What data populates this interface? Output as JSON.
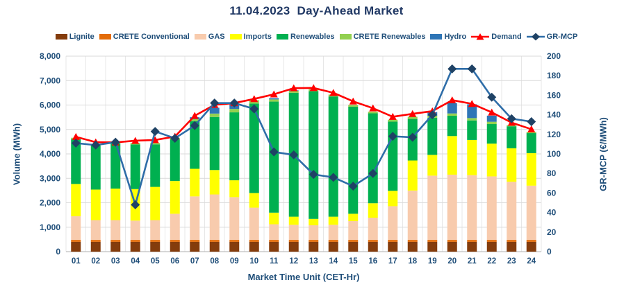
{
  "title": "11.04.2023  Day-Ahead Market",
  "colors": {
    "text_navy": "#1F4E79",
    "title_navy": "#203864",
    "gridline": "#D9D9D9",
    "gridline_vertical": "#E7E7E7",
    "axis_line": "#BFBFBF"
  },
  "legend": {
    "items": [
      {
        "label": "Lignite",
        "type": "swatch",
        "color": "#843C0C"
      },
      {
        "label": "CRETE Conventional",
        "type": "swatch",
        "color": "#E36C09"
      },
      {
        "label": "GAS",
        "type": "swatch",
        "color": "#F8CBAD"
      },
      {
        "label": "Imports",
        "type": "swatch",
        "color": "#FFFF00"
      },
      {
        "label": "Renewables",
        "type": "swatch",
        "color": "#00B050"
      },
      {
        "label": "CRETE Renewables",
        "type": "swatch",
        "color": "#92D050"
      },
      {
        "label": "Hydro",
        "type": "swatch",
        "color": "#2E75B6"
      },
      {
        "label": "Demand",
        "type": "line-triangle",
        "color": "#FF0000"
      },
      {
        "label": "GR-MCP",
        "type": "line-diamond",
        "color": "#2E6DA8",
        "marker_color": "#1F4265"
      }
    ]
  },
  "axes": {
    "left": {
      "title": "Volume (MWh)",
      "ticks": [
        "0",
        "1,000",
        "2,000",
        "3,000",
        "4,000",
        "5,000",
        "6,000",
        "7,000",
        "8,000"
      ]
    },
    "right": {
      "title": "GR-MCP (€/MWh)",
      "ticks": [
        "0",
        "20",
        "40",
        "60",
        "80",
        "100",
        "120",
        "140",
        "160",
        "180",
        "200"
      ]
    },
    "x": {
      "title": "Market Time Unit (CET-Hr)"
    }
  },
  "chart_data": {
    "type": "bar-line-combo",
    "subtype": "stacked-bars-with-two-lines",
    "title": "11.04.2023  Day-Ahead Market",
    "xlabel": "Market Time Unit (CET-Hr)",
    "ylabel_left": "Volume (MWh)",
    "ylabel_right": "GR-MCP (€/MWh)",
    "ylim_left": [
      0,
      8000
    ],
    "ylim_right": [
      0,
      200
    ],
    "grid": true,
    "legend_position": "top",
    "categories": [
      "01",
      "02",
      "03",
      "04",
      "05",
      "06",
      "07",
      "08",
      "09",
      "10",
      "11",
      "12",
      "13",
      "14",
      "15",
      "16",
      "17",
      "18",
      "19",
      "20",
      "21",
      "22",
      "23",
      "24"
    ],
    "stacked_series": [
      {
        "name": "Lignite",
        "color": "#843C0C",
        "values": [
          400,
          400,
          400,
          400,
          400,
          400,
          400,
          400,
          400,
          400,
          400,
          400,
          400,
          400,
          400,
          400,
          400,
          400,
          400,
          400,
          400,
          400,
          400,
          400
        ]
      },
      {
        "name": "CRETE Conventional",
        "color": "#E36C09",
        "values": [
          80,
          80,
          80,
          80,
          80,
          80,
          80,
          80,
          80,
          80,
          80,
          80,
          80,
          80,
          80,
          80,
          80,
          80,
          80,
          80,
          80,
          80,
          80,
          80
        ]
      },
      {
        "name": "GAS",
        "color": "#F8CBAD",
        "values": [
          970,
          810,
          810,
          790,
          810,
          1070,
          1780,
          1860,
          1750,
          1320,
          640,
          620,
          600,
          620,
          770,
          910,
          1380,
          2020,
          2630,
          2670,
          2650,
          2600,
          2380,
          2220
        ]
      },
      {
        "name": "Imports",
        "color": "#FFFF00",
        "values": [
          1320,
          1250,
          1290,
          1290,
          1360,
          1340,
          1130,
          1000,
          690,
          600,
          475,
          330,
          260,
          330,
          300,
          590,
          630,
          1230,
          850,
          1580,
          1440,
          1340,
          1370,
          1330
        ]
      },
      {
        "name": "Renewables",
        "color": "#00B050",
        "values": [
          1830,
          1800,
          1850,
          1825,
          1740,
          1710,
          1950,
          2170,
          2780,
          3660,
          4545,
          5070,
          5225,
          4920,
          4380,
          3680,
          2830,
          1700,
          1520,
          830,
          800,
          800,
          900,
          820
        ]
      },
      {
        "name": "CRETE Renewables",
        "color": "#92D050",
        "values": [
          60,
          60,
          60,
          60,
          55,
          60,
          80,
          140,
          140,
          140,
          90,
          80,
          85,
          80,
          75,
          70,
          80,
          90,
          80,
          95,
          95,
          95,
          50,
          50
        ]
      },
      {
        "name": "Hydro",
        "color": "#2E75B6",
        "values": [
          0,
          0,
          0,
          0,
          0,
          0,
          80,
          240,
          210,
          0,
          50,
          20,
          0,
          0,
          0,
          0,
          0,
          0,
          150,
          425,
          565,
          250,
          0,
          0
        ]
      }
    ],
    "line_series": [
      {
        "name": "Demand",
        "axis": "left",
        "color": "#FF0000",
        "marker": "triangle",
        "values": [
          4700,
          4480,
          4470,
          4540,
          4570,
          4710,
          5560,
          6010,
          6080,
          6250,
          6440,
          6690,
          6700,
          6500,
          6150,
          5870,
          5520,
          5640,
          5750,
          6200,
          6050,
          5700,
          5280,
          5010
        ]
      },
      {
        "name": "GR-MCP",
        "axis": "right",
        "color": "#2E6DA8",
        "marker": "diamond",
        "marker_color": "#1F4265",
        "values": [
          111,
          109,
          112,
          48,
          123,
          116,
          129,
          152,
          152,
          146,
          102,
          99,
          79,
          76,
          67,
          80,
          118,
          117,
          140,
          187,
          187,
          158,
          136,
          133
        ]
      }
    ]
  }
}
